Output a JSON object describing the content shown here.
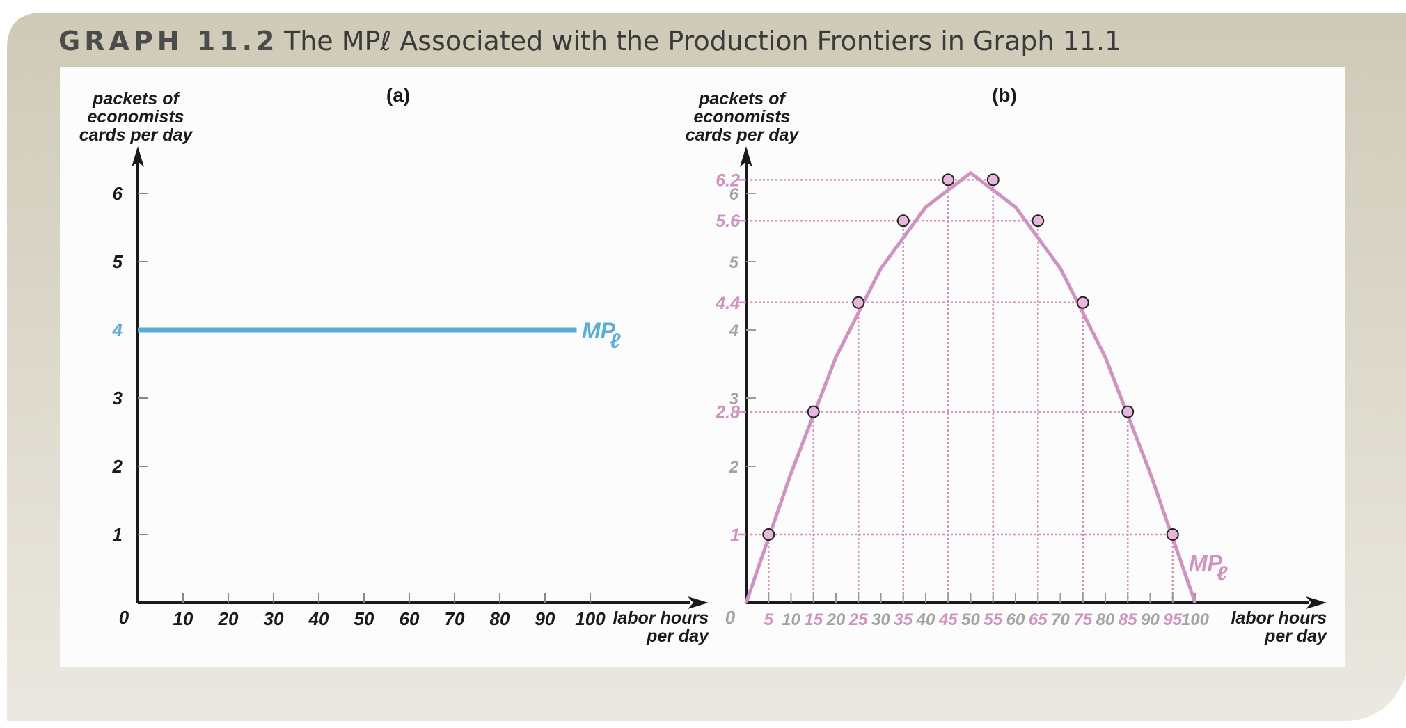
{
  "header": {
    "label": "GRAPH 11.2",
    "title": "The MPℓ Associated with the Production Frontiers in Graph 11.1"
  },
  "colors": {
    "frame_top": "#cfcab7",
    "frame_bottom": "#ebe8e1",
    "panel": "#fcfcfc",
    "axis": "#1a1a1a",
    "blue": "#5aaed5",
    "pink": "#cf93c1",
    "gray_tick": "#a3a3a3",
    "dot_fill": "#e7b6dc"
  },
  "chart_data": [
    {
      "panel_label": "(a)",
      "type": "line",
      "ylabel": [
        "packets of",
        "economists",
        "cards per day"
      ],
      "xlabel": [
        "labor hours",
        "per day"
      ],
      "origin_label": "0",
      "xticks": [
        "10",
        "20",
        "30",
        "40",
        "50",
        "60",
        "70",
        "80",
        "90",
        "100"
      ],
      "yticks": [
        "1",
        "2",
        "3",
        "5",
        "6"
      ],
      "highlight_ytick": "4",
      "xlim": [
        0,
        100
      ],
      "ylim": [
        0,
        6
      ],
      "series": [
        {
          "name": "MPℓ",
          "x": [
            0,
            97
          ],
          "y": [
            4,
            4
          ]
        }
      ]
    },
    {
      "panel_label": "(b)",
      "type": "line",
      "ylabel": [
        "packets of",
        "economists",
        "cards per day"
      ],
      "xlabel": [
        "labor hours",
        "per day"
      ],
      "origin_label": "0",
      "xticks_highlight": [
        "5",
        "15",
        "25",
        "35",
        "45",
        "55",
        "65",
        "75",
        "85",
        "95"
      ],
      "xticks_gray": [
        "10",
        "20",
        "30",
        "40",
        "50",
        "60",
        "70",
        "80",
        "90",
        "100"
      ],
      "yticks_highlight": [
        "1",
        "2.8",
        "4.4",
        "5.6",
        "6.2"
      ],
      "yticks_gray": [
        "2",
        "3",
        "4",
        "5",
        "6"
      ],
      "xlim": [
        0,
        100
      ],
      "ylim": [
        0,
        6.2
      ],
      "series": [
        {
          "name": "MPℓ",
          "curve": "parabola",
          "curve_x": [
            0,
            10,
            20,
            30,
            40,
            50,
            60,
            70,
            80,
            90,
            100
          ],
          "curve_y": [
            0,
            1.9,
            3.6,
            4.9,
            5.8,
            6.3,
            5.8,
            4.9,
            3.6,
            1.9,
            0
          ],
          "points_x": [
            5,
            15,
            25,
            35,
            45,
            55,
            65,
            75,
            85,
            95
          ],
          "points_y": [
            1,
            2.8,
            4.4,
            5.6,
            6.2,
            6.2,
            5.6,
            4.4,
            2.8,
            1
          ]
        }
      ]
    }
  ]
}
